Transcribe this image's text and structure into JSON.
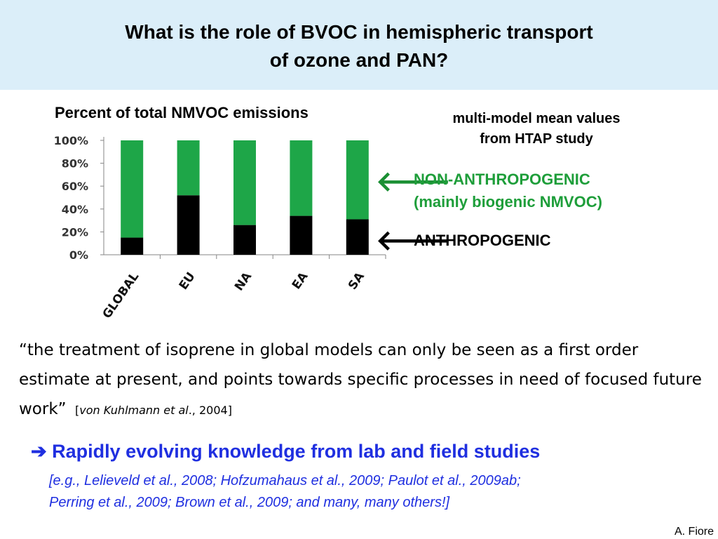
{
  "header": {
    "title_line1": "What is the role of BVOC in hemispheric transport",
    "title_line2": "of ozone and PAN?"
  },
  "chart_data": {
    "type": "bar",
    "stacked": true,
    "title": "Percent of total NMVOC emissions",
    "categories": [
      "GLOBAL",
      "EU",
      "NA",
      "EA",
      "SA"
    ],
    "series": [
      {
        "name": "ANTHROPOGENIC",
        "color": "#000000",
        "values": [
          15,
          52,
          26,
          34,
          31
        ]
      },
      {
        "name": "NON-ANTHROPOGENIC",
        "color": "#1ea648",
        "values": [
          85,
          48,
          74,
          66,
          69
        ]
      }
    ],
    "ylim": [
      0,
      100
    ],
    "yticks": [
      "0%",
      "20%",
      "40%",
      "60%",
      "80%",
      "100%"
    ],
    "grid": false
  },
  "annotations": {
    "note_line1": "multi-model mean values",
    "note_line2": "from HTAP study",
    "arrow_glyph": "🡐",
    "nonanth_line1": "NON-ANTHROPOGENIC",
    "nonanth_line2": "(mainly biogenic NMVOC)",
    "anth_label": "ANTHROPOGENIC"
  },
  "quote": {
    "text": "“the treatment of isoprene in global models can only be seen as a first order estimate at present, and points towards specific processes in need of focused future work”",
    "cite_open": "[",
    "cite_author": "von Kuhlmann et al",
    "cite_rest": "., 2004]"
  },
  "highlight": {
    "arrow": "➔",
    "text": " Rapidly evolving knowledge from lab and field studies"
  },
  "refs": {
    "line1": "[e.g., Lelieveld et al., 2008; Hofzumahaus et al., 2009; Paulot et al., 2009ab;",
    "line2": "Perring et al., 2009; Brown et al., 2009; and many, many others!]"
  },
  "author": "A. Fiore"
}
